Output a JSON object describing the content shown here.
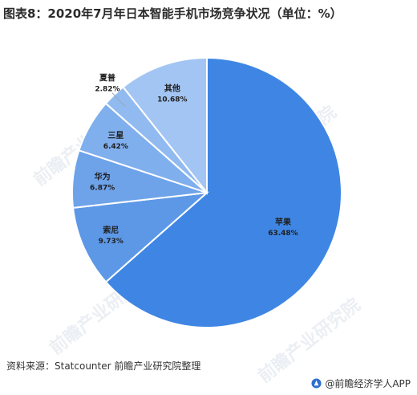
{
  "chart_data": {
    "type": "pie",
    "title": "图表8：2020年7月年日本智能手机市场竞争状况（单位：%）",
    "slices": [
      {
        "label": "苹果",
        "value": 63.48,
        "value_label": "63.48%",
        "color": "#3f86e4"
      },
      {
        "label": "索尼",
        "value": 9.73,
        "value_label": "9.73%",
        "color": "#5d98e7"
      },
      {
        "label": "华为",
        "value": 6.87,
        "value_label": "6.87%",
        "color": "#6ea3ea"
      },
      {
        "label": "三星",
        "value": 6.42,
        "value_label": "6.42%",
        "color": "#80afed"
      },
      {
        "label": "夏普",
        "value": 2.82,
        "value_label": "2.82%",
        "color": "#91baf0"
      },
      {
        "label": "其他",
        "value": 10.68,
        "value_label": "10.68%",
        "color": "#a3c5f3"
      }
    ]
  },
  "source": "资料来源：Statcounter  前瞻产业研究院整理",
  "footer": "@前瞻经济学人APP",
  "watermark": "前瞻产业研究院"
}
